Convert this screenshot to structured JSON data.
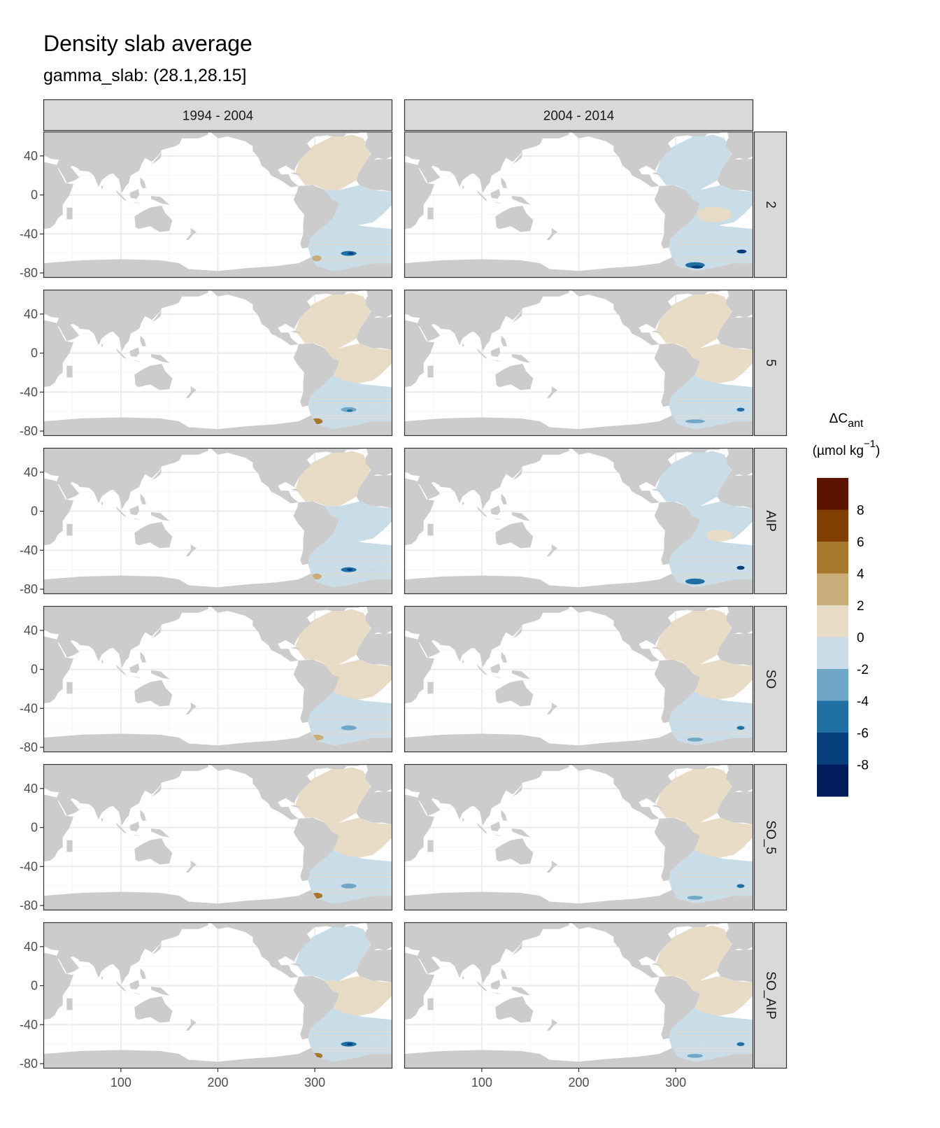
{
  "title": "Density slab average",
  "subtitle": "gamma_slab: (28.1,28.15]",
  "legend": {
    "title_main": "ΔC",
    "title_sub": "ant",
    "title_unit_open": "(µmol kg",
    "title_unit_exp": "−1",
    "title_unit_close": ")",
    "breaks": [
      "8",
      "6",
      "4",
      "2",
      "0",
      "-2",
      "-4",
      "-6",
      "-8"
    ],
    "colors": [
      "#67001f",
      "#7f3b08",
      "#b35806",
      "#a6782a",
      "#c9ad7a",
      "#e8dcc7",
      "#c9dde9",
      "#71a6c8",
      "#2171a8",
      "#08407a",
      "#081d58"
    ],
    "bins": [
      {
        "color": "#5c1300"
      },
      {
        "color": "#7f3f00"
      },
      {
        "color": "#a8772e"
      },
      {
        "color": "#c8ad7b"
      },
      {
        "color": "#e8dcc7"
      },
      {
        "color": "#c9dde9"
      },
      {
        "color": "#70a6c6"
      },
      {
        "color": "#1f6fa3"
      },
      {
        "color": "#073e7c"
      },
      {
        "color": "#021b5a"
      }
    ]
  },
  "columns": [
    "1994 - 2004",
    "2004 - 2014"
  ],
  "rows": [
    "2",
    "5",
    "AIP",
    "SO",
    "SO_5",
    "SO_AIP"
  ],
  "chart_data": {
    "type": "heatmap",
    "title": "Density slab average",
    "subtitle": "gamma_slab: (28.1,28.15]",
    "facet_columns": [
      "1994 - 2004",
      "2004 - 2014"
    ],
    "facet_rows": [
      "2",
      "5",
      "AIP",
      "SO",
      "SO_5",
      "SO_AIP"
    ],
    "x_ticks": [
      100,
      200,
      300
    ],
    "y_ticks": [
      40,
      0,
      -40,
      -80
    ],
    "xlim": [
      20,
      380
    ],
    "ylim": [
      -85,
      65
    ],
    "fill_scale": {
      "label": "ΔC_ant (µmol kg⁻¹)",
      "breaks": [
        8,
        6,
        4,
        2,
        0,
        -2,
        -4,
        -6,
        -8
      ]
    },
    "grid": true,
    "legend_position": "right"
  }
}
